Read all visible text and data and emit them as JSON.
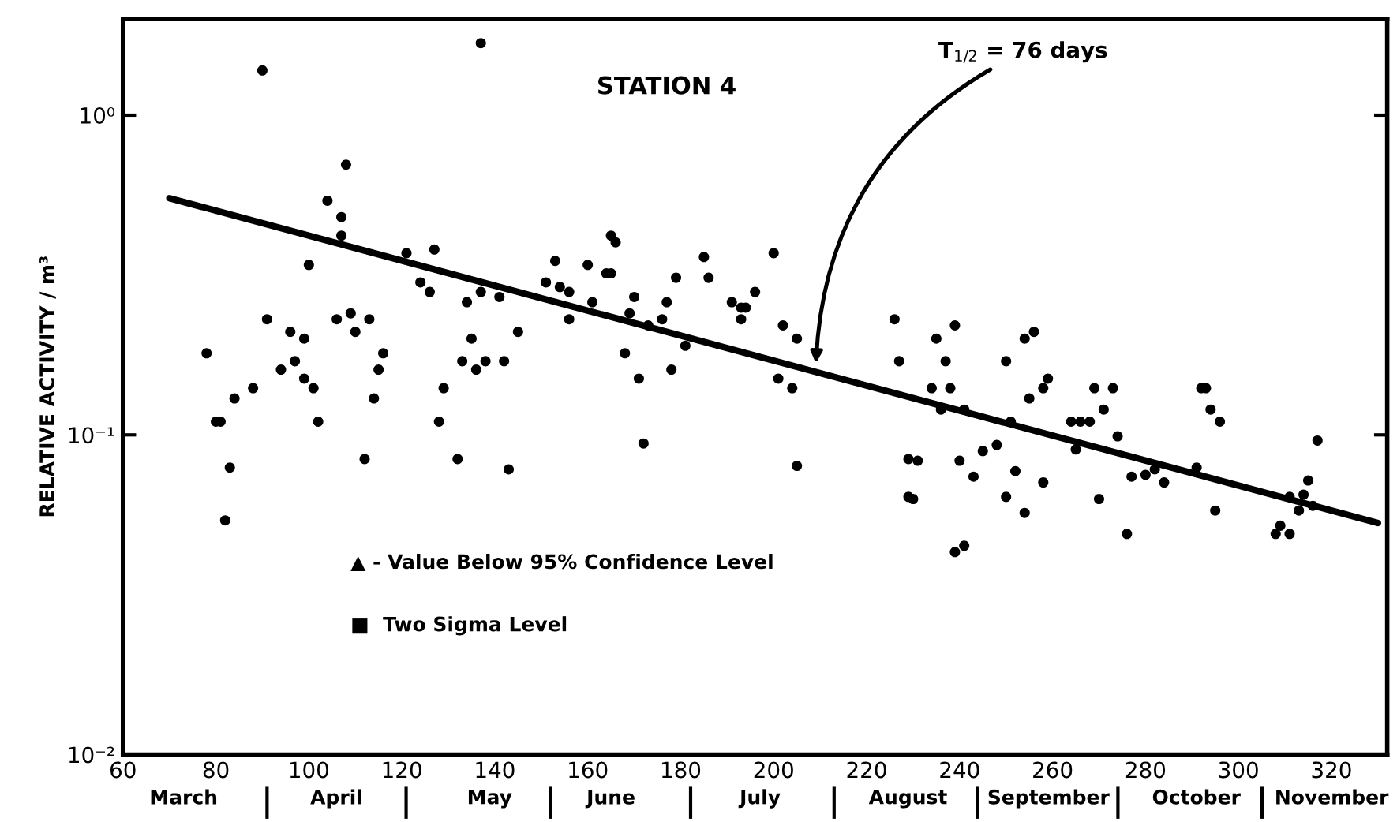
{
  "chart_data": {
    "type": "scatter",
    "title": "STATION 4",
    "ylabel": "RELATIVE ACTIVITY / m³",
    "log": "y",
    "grid": false,
    "marker": "circle",
    "xlim": [
      60,
      332
    ],
    "xticks": [
      60,
      80,
      100,
      120,
      140,
      160,
      180,
      200,
      220,
      240,
      260,
      280,
      300,
      320
    ],
    "ylim": [
      0.01,
      2
    ],
    "yticks": [
      {
        "value": 0.01,
        "label": "10⁻²"
      },
      {
        "value": 0.1,
        "label": "10⁻¹"
      },
      {
        "value": 1,
        "label": "10⁰"
      }
    ],
    "series": [
      {
        "color": "#000000",
        "x": [
          90,
          137,
          108,
          104,
          107,
          107,
          100,
          127,
          121,
          124,
          126,
          153,
          151,
          154,
          156,
          137,
          134,
          141,
          91,
          78,
          96,
          99,
          106,
          109,
          113,
          110,
          116,
          115,
          114,
          94,
          97,
          99,
          101,
          102,
          88,
          84,
          80,
          81,
          83,
          82,
          112,
          135,
          145,
          133,
          136,
          138,
          142,
          129,
          128,
          132,
          143,
          165,
          166,
          160,
          156,
          164,
          165,
          161,
          170,
          169,
          173,
          176,
          177,
          179,
          185,
          186,
          181,
          168,
          171,
          178,
          172,
          191,
          193,
          194,
          193,
          196,
          200,
          202,
          205,
          201,
          204,
          205,
          226,
          227,
          235,
          239,
          237,
          234,
          238,
          236,
          241,
          229,
          231,
          240,
          243,
          245,
          229,
          230,
          254,
          256,
          250,
          259,
          258,
          255,
          269,
          273,
          271,
          264,
          266,
          268,
          274,
          265,
          251,
          248,
          252,
          258,
          250,
          254,
          270,
          277,
          280,
          282,
          284,
          276,
          292,
          293,
          294,
          296,
          291,
          295,
          317,
          315,
          311,
          314,
          313,
          316,
          309,
          308,
          311,
          239,
          241
        ],
        "values": [
          1.38,
          1.68,
          0.7,
          0.54,
          0.48,
          0.42,
          0.34,
          0.38,
          0.37,
          0.3,
          0.28,
          0.35,
          0.3,
          0.29,
          0.23,
          0.28,
          0.26,
          0.27,
          0.23,
          0.18,
          0.21,
          0.2,
          0.23,
          0.24,
          0.23,
          0.21,
          0.18,
          0.16,
          0.13,
          0.16,
          0.17,
          0.15,
          0.14,
          0.11,
          0.14,
          0.13,
          0.11,
          0.11,
          0.079,
          0.054,
          0.084,
          0.2,
          0.21,
          0.17,
          0.16,
          0.17,
          0.17,
          0.14,
          0.11,
          0.084,
          0.078,
          0.42,
          0.4,
          0.34,
          0.28,
          0.32,
          0.32,
          0.26,
          0.27,
          0.24,
          0.22,
          0.23,
          0.26,
          0.31,
          0.36,
          0.31,
          0.19,
          0.18,
          0.15,
          0.16,
          0.094,
          0.26,
          0.25,
          0.25,
          0.23,
          0.28,
          0.37,
          0.22,
          0.2,
          0.15,
          0.14,
          0.08,
          0.23,
          0.17,
          0.2,
          0.22,
          0.17,
          0.14,
          0.14,
          0.12,
          0.12,
          0.084,
          0.083,
          0.083,
          0.074,
          0.089,
          0.064,
          0.063,
          0.2,
          0.21,
          0.17,
          0.15,
          0.14,
          0.13,
          0.14,
          0.14,
          0.12,
          0.11,
          0.11,
          0.11,
          0.099,
          0.09,
          0.11,
          0.093,
          0.077,
          0.071,
          0.064,
          0.057,
          0.063,
          0.074,
          0.075,
          0.078,
          0.071,
          0.049,
          0.14,
          0.14,
          0.12,
          0.11,
          0.079,
          0.058,
          0.096,
          0.072,
          0.064,
          0.065,
          0.058,
          0.06,
          0.052,
          0.049,
          0.049,
          0.043,
          0.045
        ]
      },
      {
        "type": "line",
        "marker": "none",
        "color": "#000000",
        "x": [
          70,
          330
        ],
        "values": [
          0.55,
          0.053
        ]
      }
    ],
    "annotations": [
      "T$_{1/2}$ = 76 days",
      "▲ - Value Below 95% Confidence Level",
      "■  Two Sigma Level",
      "March",
      "April",
      "May",
      "June",
      "July",
      "August",
      "September",
      "October",
      "November"
    ]
  }
}
